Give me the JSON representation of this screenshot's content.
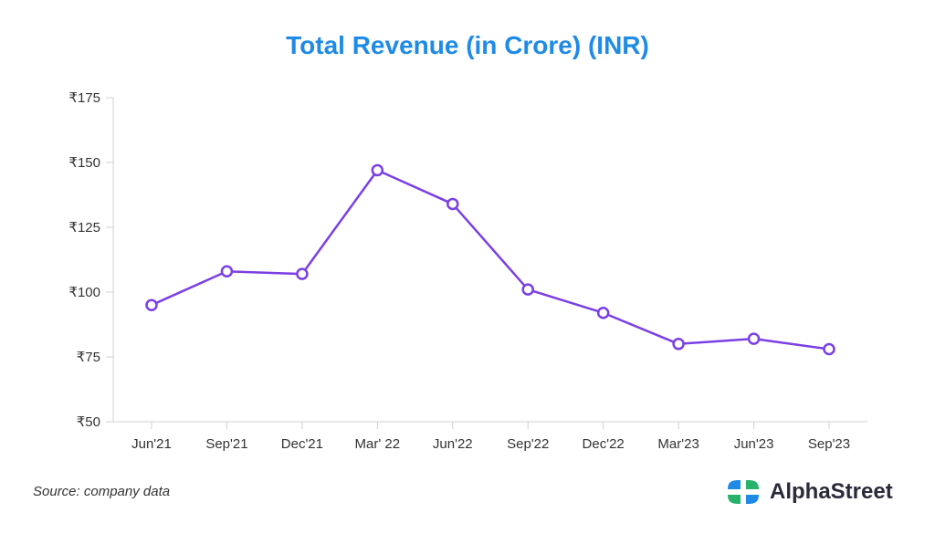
{
  "chart_data": {
    "type": "line",
    "title": "Total Revenue (in Crore) (INR)",
    "categories": [
      "Jun'21",
      "Sep'21",
      "Dec'21",
      "Mar' 22",
      "Jun'22",
      "Sep'22",
      "Dec'22",
      "Mar'23",
      "Jun'23",
      "Sep'23"
    ],
    "series": [
      {
        "name": "Total Revenue",
        "values": [
          95,
          108,
          107,
          147,
          134,
          101,
          92,
          80,
          82,
          78
        ]
      }
    ],
    "ylim": [
      50,
      175
    ],
    "yticks": [
      50,
      75,
      100,
      125,
      150,
      175
    ],
    "ytick_labels": [
      "₹50",
      "₹75",
      "₹100",
      "₹125",
      "₹150",
      "₹175"
    ],
    "xlabel": "",
    "ylabel": "",
    "grid": false,
    "line_color": "#7b3fe4"
  },
  "footer": {
    "source": "Source: company data",
    "brand": "AlphaStreet"
  }
}
